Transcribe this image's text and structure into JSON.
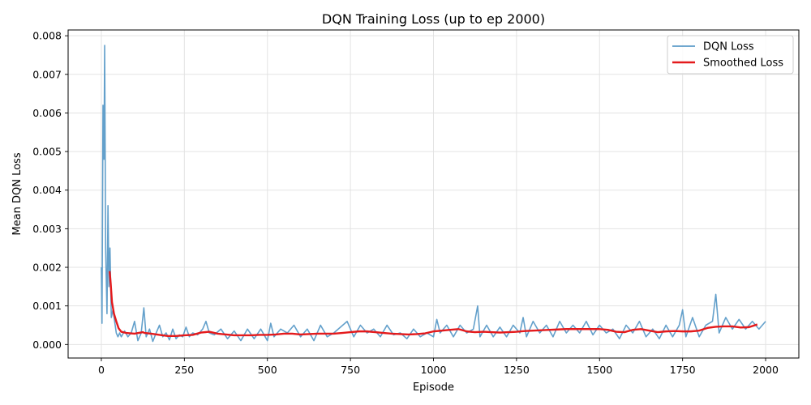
{
  "chart_data": {
    "type": "line",
    "title": "DQN Training Loss (up to ep 2000)",
    "xlabel": "Episode",
    "ylabel": "Mean DQN Loss",
    "xlim": [
      -100,
      2100
    ],
    "ylim": [
      -0.00035,
      0.00815
    ],
    "x_ticks": [
      0,
      250,
      500,
      750,
      1000,
      1250,
      1500,
      1750,
      2000
    ],
    "x_tick_labels": [
      "0",
      "250",
      "500",
      "750",
      "1000",
      "1250",
      "1500",
      "1750",
      "2000"
    ],
    "y_ticks": [
      0.0,
      0.001,
      0.002,
      0.003,
      0.004,
      0.005,
      0.006,
      0.007,
      0.008
    ],
    "y_tick_labels": [
      "0.000",
      "0.001",
      "0.002",
      "0.003",
      "0.004",
      "0.005",
      "0.006",
      "0.007",
      "0.008"
    ],
    "grid": true,
    "legend_position": "top-right",
    "series": [
      {
        "name": "DQN Loss",
        "color": "#5b9bc8",
        "x": [
          0,
          2,
          5,
          8,
          10,
          13,
          17,
          20,
          23,
          26,
          30,
          35,
          40,
          45,
          50,
          55,
          60,
          70,
          80,
          90,
          100,
          110,
          120,
          128,
          135,
          145,
          155,
          165,
          175,
          185,
          195,
          205,
          215,
          225,
          235,
          245,
          255,
          265,
          275,
          290,
          305,
          315,
          325,
          340,
          360,
          380,
          400,
          420,
          440,
          460,
          480,
          500,
          510,
          520,
          540,
          560,
          580,
          600,
          620,
          640,
          660,
          680,
          700,
          720,
          740,
          760,
          780,
          800,
          820,
          840,
          860,
          880,
          900,
          920,
          940,
          960,
          980,
          1000,
          1010,
          1020,
          1040,
          1060,
          1080,
          1100,
          1120,
          1133,
          1140,
          1160,
          1180,
          1200,
          1220,
          1240,
          1260,
          1270,
          1280,
          1300,
          1320,
          1340,
          1360,
          1380,
          1400,
          1420,
          1440,
          1460,
          1480,
          1500,
          1520,
          1540,
          1560,
          1580,
          1600,
          1620,
          1640,
          1660,
          1680,
          1700,
          1720,
          1740,
          1750,
          1760,
          1780,
          1800,
          1820,
          1840,
          1850,
          1860,
          1880,
          1900,
          1920,
          1940,
          1960,
          1980,
          2000
        ],
        "y": [
          0.002,
          0.00055,
          0.0062,
          0.0048,
          0.00775,
          0.0025,
          0.0008,
          0.0036,
          0.0015,
          0.0025,
          0.0007,
          0.0009,
          0.0006,
          0.0003,
          0.0002,
          0.0003,
          0.0002,
          0.00035,
          0.0002,
          0.0003,
          0.0006,
          0.0001,
          0.0003,
          0.00095,
          0.0002,
          0.0004,
          8e-05,
          0.0003,
          0.0005,
          0.0002,
          0.0003,
          0.00012,
          0.0004,
          0.00015,
          0.00025,
          0.0002,
          0.00045,
          0.0002,
          0.0003,
          0.00025,
          0.0004,
          0.0006,
          0.0003,
          0.00025,
          0.0004,
          0.00015,
          0.00035,
          0.0001,
          0.0004,
          0.00015,
          0.0004,
          0.0001,
          0.00055,
          0.0002,
          0.0004,
          0.0003,
          0.0005,
          0.0002,
          0.0004,
          0.0001,
          0.0005,
          0.0002,
          0.0003,
          0.00045,
          0.0006,
          0.0002,
          0.0005,
          0.0003,
          0.0004,
          0.0002,
          0.0005,
          0.00025,
          0.0003,
          0.00015,
          0.0004,
          0.0002,
          0.0003,
          0.0002,
          0.00065,
          0.0003,
          0.0005,
          0.0002,
          0.0005,
          0.0003,
          0.0004,
          0.001,
          0.0002,
          0.0005,
          0.0002,
          0.00045,
          0.0002,
          0.0005,
          0.0003,
          0.0007,
          0.0002,
          0.0006,
          0.0003,
          0.0005,
          0.0002,
          0.0006,
          0.0003,
          0.0005,
          0.0003,
          0.0006,
          0.00025,
          0.0005,
          0.0003,
          0.0004,
          0.00015,
          0.0005,
          0.0003,
          0.0006,
          0.0002,
          0.0004,
          0.00015,
          0.0005,
          0.0002,
          0.0005,
          0.0009,
          0.0002,
          0.0007,
          0.0002,
          0.0005,
          0.0006,
          0.0013,
          0.0003,
          0.0007,
          0.0004,
          0.00065,
          0.0004,
          0.0006,
          0.0004,
          0.0006
        ]
      },
      {
        "name": "Smoothed Loss",
        "color": "#e41a1c",
        "x": [
          25,
          28,
          32,
          38,
          45,
          52,
          60,
          75,
          100,
          125,
          130,
          150,
          175,
          200,
          225,
          250,
          275,
          300,
          325,
          350,
          375,
          400,
          425,
          450,
          475,
          500,
          525,
          550,
          575,
          600,
          625,
          650,
          675,
          700,
          725,
          750,
          775,
          800,
          825,
          850,
          875,
          900,
          925,
          950,
          975,
          1000,
          1025,
          1050,
          1075,
          1100,
          1125,
          1150,
          1175,
          1200,
          1225,
          1250,
          1275,
          1300,
          1325,
          1350,
          1375,
          1400,
          1425,
          1450,
          1475,
          1500,
          1525,
          1550,
          1575,
          1600,
          1625,
          1650,
          1675,
          1700,
          1725,
          1750,
          1775,
          1800,
          1825,
          1850,
          1875,
          1900,
          1925,
          1950,
          1975
        ],
        "y": [
          0.0019,
          0.0016,
          0.0011,
          0.0008,
          0.0006,
          0.00042,
          0.00033,
          0.0003,
          0.00028,
          0.00032,
          0.0003,
          0.00028,
          0.00025,
          0.00022,
          0.00022,
          0.00024,
          0.00025,
          0.00031,
          0.00033,
          0.00028,
          0.00026,
          0.00024,
          0.00024,
          0.00024,
          0.00025,
          0.00025,
          0.00026,
          0.00028,
          0.00028,
          0.00026,
          0.00027,
          0.00028,
          0.00028,
          0.00028,
          0.0003,
          0.00032,
          0.00034,
          0.00034,
          0.00032,
          0.0003,
          0.00028,
          0.00027,
          0.00026,
          0.00027,
          0.00029,
          0.00034,
          0.00036,
          0.00038,
          0.0004,
          0.00034,
          0.00032,
          0.00033,
          0.00032,
          0.00031,
          0.00032,
          0.00033,
          0.00035,
          0.00036,
          0.00037,
          0.00038,
          0.00039,
          0.0004,
          0.0004,
          0.0004,
          0.0004,
          0.0004,
          0.00038,
          0.00033,
          0.00032,
          0.00038,
          0.0004,
          0.00036,
          0.00032,
          0.00034,
          0.00035,
          0.00034,
          0.00034,
          0.00036,
          0.00043,
          0.00046,
          0.00047,
          0.00047,
          0.00044,
          0.00045,
          0.00052
        ]
      }
    ]
  }
}
